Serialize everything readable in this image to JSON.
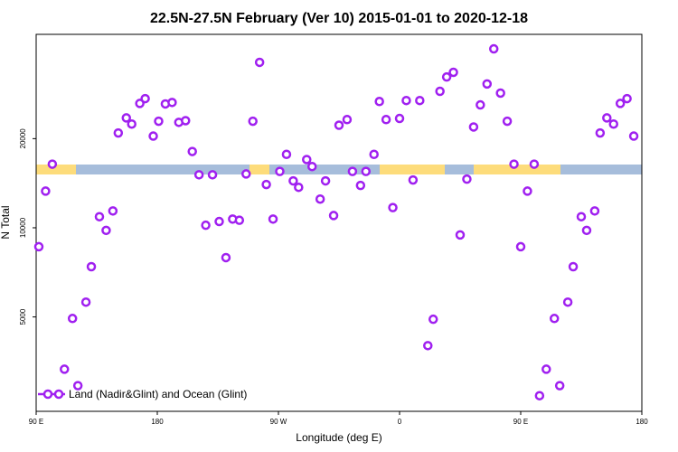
{
  "chart_data": {
    "type": "scatter",
    "title": "22.5N-27.5N February (Ver 10)   2015-01-01 to 2020-12-18",
    "x_label": "Longitude (deg E)",
    "y_label": "N Total",
    "xlim": [
      90,
      540
    ],
    "ylim": [
      2400,
      45000
    ],
    "y_scale": "log",
    "grid": false,
    "legend": "bottom left",
    "xticks": [
      {
        "value": 90,
        "label": "90 E"
      },
      {
        "value": 180,
        "label": "180"
      },
      {
        "value": 270,
        "label": "90 W"
      },
      {
        "value": 360,
        "label": "0"
      },
      {
        "value": 450,
        "label": "90 E"
      },
      {
        "value": 540,
        "label": "180"
      }
    ],
    "yticks": [
      5000,
      10000,
      20000
    ],
    "series": [
      {
        "name": "Land (Nadir&Glint) and Ocean (Glint)",
        "color": "#a020f0",
        "x": [
          92,
          97,
          102,
          111,
          117,
          121,
          127,
          131,
          137,
          142,
          147,
          151,
          157,
          161,
          167,
          171,
          177,
          181,
          186,
          191,
          196,
          201,
          206,
          211,
          216,
          221,
          226,
          231,
          236,
          241,
          246,
          251,
          256,
          261,
          266,
          271,
          276,
          281,
          285,
          291,
          295,
          301,
          305,
          311,
          315,
          321,
          325,
          331,
          335,
          341,
          345,
          350,
          355,
          360,
          365,
          370,
          375,
          381,
          385,
          390,
          395,
          400,
          405,
          410,
          415,
          420,
          425,
          430,
          435,
          440,
          445,
          450,
          455,
          460,
          464,
          469,
          475,
          479,
          485,
          489,
          495,
          499,
          505,
          509,
          514,
          519,
          524,
          529,
          534
        ],
        "values": [
          8630,
          13300,
          16400,
          3330,
          4940,
          2930,
          5610,
          7390,
          10900,
          9800,
          11400,
          20900,
          23500,
          22400,
          26300,
          27300,
          20400,
          22900,
          26200,
          26500,
          22700,
          23000,
          18100,
          15100,
          10200,
          15100,
          10500,
          7930,
          10700,
          10600,
          15200,
          22900,
          36200,
          14000,
          10700,
          15500,
          17700,
          14400,
          13700,
          17000,
          16100,
          12500,
          14400,
          11000,
          22200,
          23200,
          15500,
          13900,
          15500,
          17700,
          26700,
          23200,
          11700,
          23400,
          26900,
          14500,
          26900,
          4000,
          4910,
          28900,
          32300,
          33500,
          9460,
          14600,
          21900,
          26000,
          30600,
          40200,
          28500,
          22900,
          16400,
          8630,
          13300,
          16400,
          2710,
          3330,
          4940,
          2930,
          5610,
          7390,
          10900,
          9800,
          11400,
          20900,
          23500,
          22400,
          26300,
          27300,
          20400
        ]
      }
    ]
  }
}
